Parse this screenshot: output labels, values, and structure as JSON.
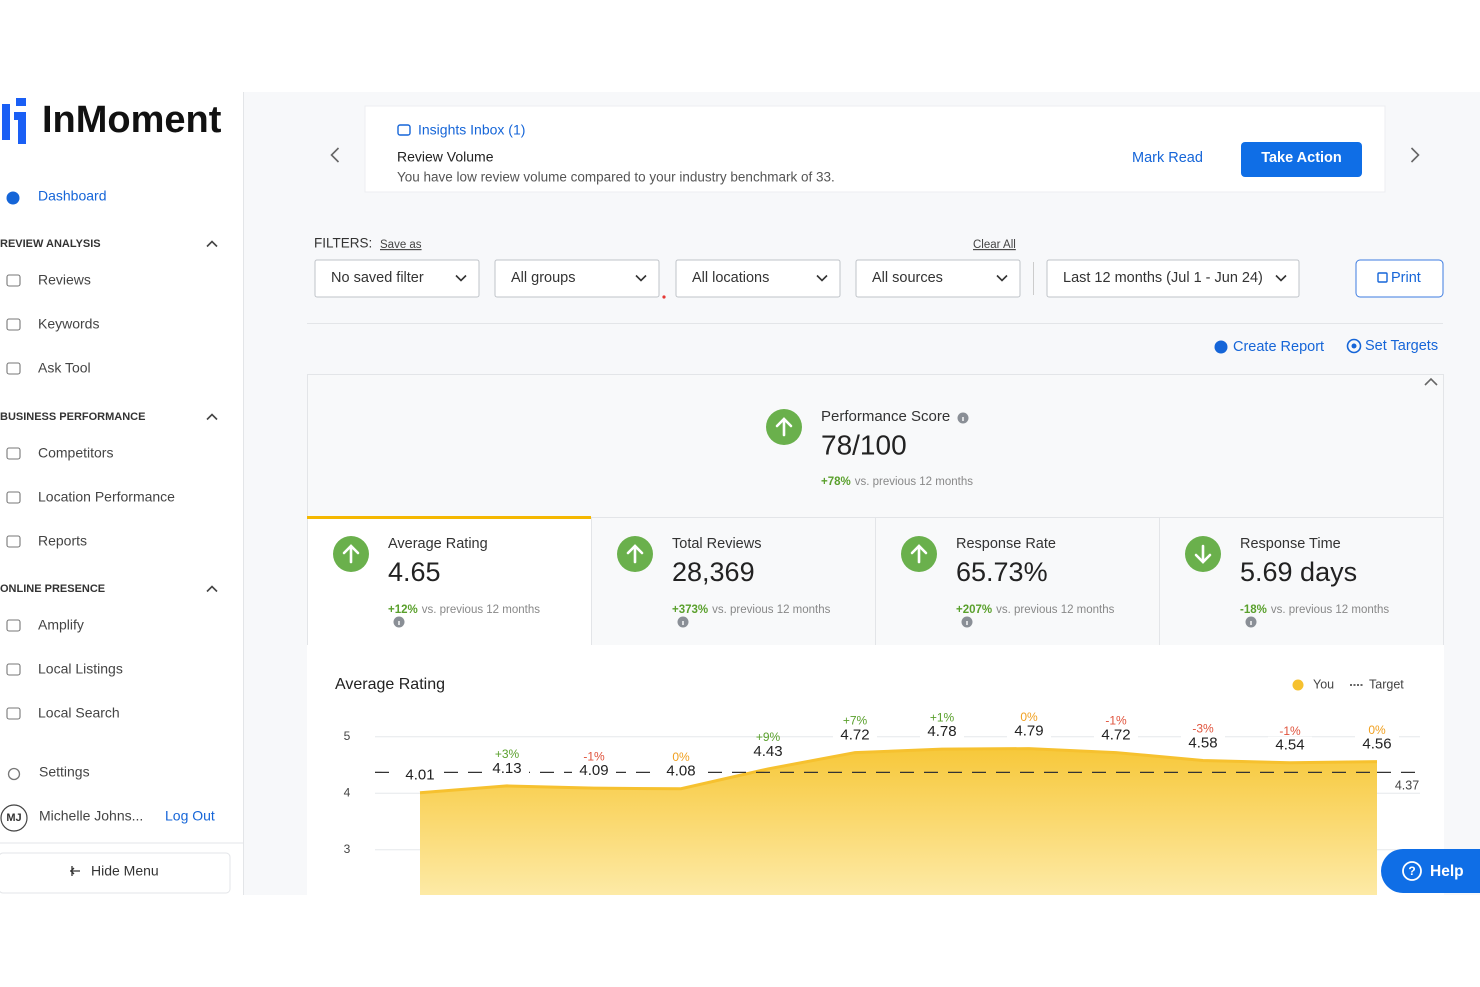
{
  "sidebar": {
    "logo": "InMoment",
    "dashboard": "Dashboard",
    "sections": [
      {
        "title": "REVIEW ANALYSIS",
        "items": [
          "Reviews",
          "Keywords",
          "Ask Tool"
        ]
      },
      {
        "title": "BUSINESS PERFORMANCE",
        "items": [
          "Competitors",
          "Location Performance",
          "Reports"
        ]
      },
      {
        "title": "ONLINE PRESENCE",
        "items": [
          "Amplify",
          "Local Listings",
          "Local Search"
        ]
      }
    ],
    "settings": "Settings",
    "user_initials": "MJ",
    "user_name": "Michelle Johns...",
    "logout": "Log Out",
    "hide_menu": "Hide Menu"
  },
  "banner": {
    "inbox": "Insights Inbox (1)",
    "title": "Review Volume",
    "message": "You have low review volume compared to your industry benchmark of 33.",
    "mark_read": "Mark Read",
    "action": "Take Action"
  },
  "filters": {
    "label": "FILTERS:",
    "save_as": "Save as",
    "clear_all": "Clear All",
    "dropdowns": [
      "No saved filter",
      "All groups",
      "All locations",
      "All sources",
      "Last 12 months (Jul 1 - Jun 24)"
    ],
    "print": "Print"
  },
  "actions": [
    "Create Report",
    "Set Targets"
  ],
  "performance": {
    "label": "Performance Score",
    "value": "78/100",
    "change": "+78%",
    "comparison": "vs. previous 12 months"
  },
  "metrics": [
    {
      "label": "Average Rating",
      "value": "4.65",
      "change": "+12%",
      "comparison": "vs. previous 12 months"
    },
    {
      "label": "Total Reviews",
      "value": "28,369",
      "change": "+373%",
      "comparison": "vs. previous 12 months"
    },
    {
      "label": "Response Rate",
      "value": "65.73%",
      "change": "+207%",
      "comparison": "vs. previous 12 months"
    },
    {
      "label": "Response Time",
      "value": "5.69 days",
      "change": "-18%",
      "comparison": "vs. previous 12 months"
    }
  ],
  "chart_data": {
    "type": "area",
    "title": "Average Rating",
    "categories": [
      null,
      null,
      null,
      null,
      null,
      null,
      null,
      null,
      null,
      null,
      null,
      null
    ],
    "series": [
      {
        "name": "You",
        "color": "#f6c12f",
        "values": [
          4.01,
          4.13,
          4.09,
          4.08,
          4.43,
          4.72,
          4.78,
          4.79,
          4.72,
          4.58,
          4.54,
          4.56
        ],
        "changes": [
          null,
          "+3%",
          "-1%",
          "0%",
          "+9%",
          "+7%",
          "+1%",
          "0%",
          "-1%",
          "-3%",
          "-1%",
          "0%"
        ]
      },
      {
        "name": "Target",
        "color": "#333333",
        "values": [
          4.37,
          4.37,
          4.37,
          4.37,
          4.37,
          4.37,
          4.37,
          4.37,
          4.37,
          4.37,
          4.37,
          4.37
        ]
      }
    ],
    "ylim": [
      2.2,
      5.65
    ],
    "yticks": [
      3,
      4,
      5
    ],
    "grid": true,
    "legend": "top-right"
  },
  "help": "Help"
}
